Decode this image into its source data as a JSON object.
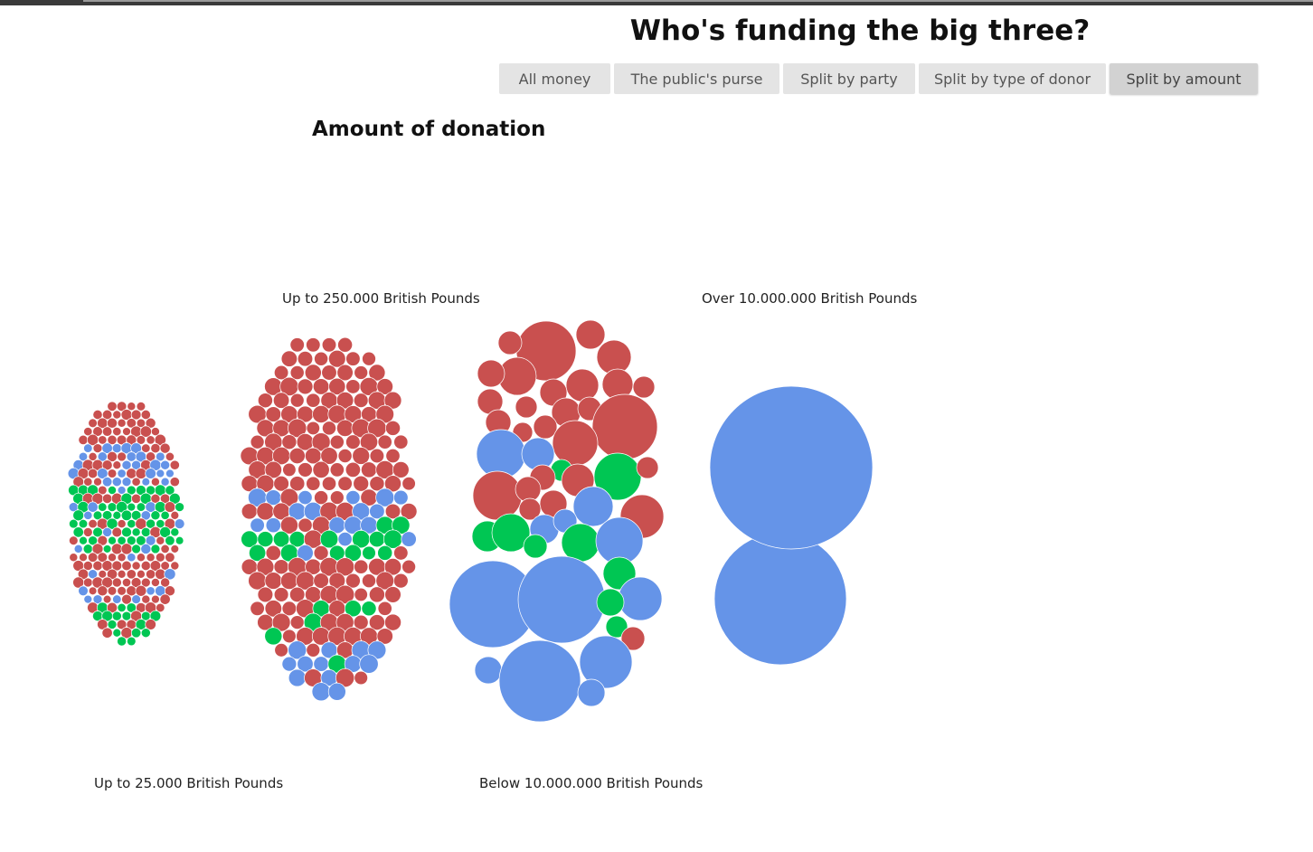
{
  "header": {
    "title": "Who's funding the big three?"
  },
  "buttons": [
    {
      "label": "All money",
      "active": false
    },
    {
      "label": "The public's purse",
      "active": false
    },
    {
      "label": "Split by party",
      "active": false
    },
    {
      "label": "Split by type of donor",
      "active": false
    },
    {
      "label": "Split by amount",
      "active": true
    }
  ],
  "section": {
    "title": "Amount of donation"
  },
  "colors": {
    "red": "#c9504f",
    "blue": "#6594e8",
    "green": "#00c653"
  },
  "chart_data": {
    "type": "bubble-cluster",
    "groups": [
      {
        "label": "Up to 25.000 British Pounds",
        "counts": {
          "red": 260,
          "blue": 55,
          "green": 75
        }
      },
      {
        "label": "Up to 250.000 British Pounds",
        "counts": {
          "red": 240,
          "blue": 60,
          "green": 40
        }
      },
      {
        "label": "Below 10.000.000 British Pounds",
        "counts": {
          "red": 30,
          "blue": 13,
          "green": 8
        }
      },
      {
        "label": "Over 10.000.000 British Pounds",
        "counts": {
          "red": 0,
          "blue": 2,
          "green": 0
        }
      }
    ]
  }
}
